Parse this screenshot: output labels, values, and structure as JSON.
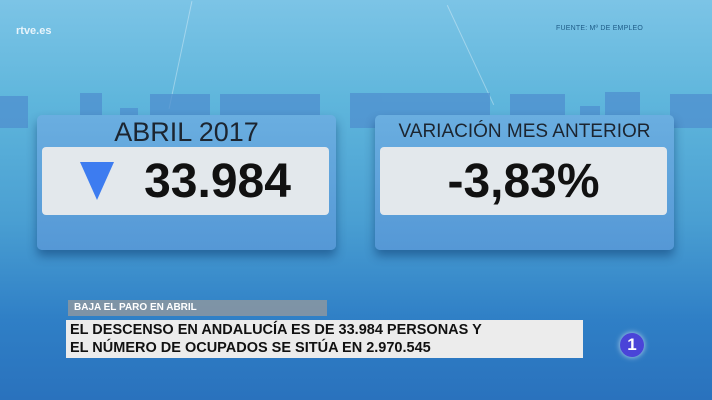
{
  "channel_logo": "rtve.es",
  "source": "FUENTE: Mº DE EMPLEO",
  "panels": [
    {
      "header": "ABRIL 2017",
      "value": "33.984",
      "indicator": "down-triangle",
      "indicator_color": "#3d7cf0"
    },
    {
      "header": "VARIACIÓN MES ANTERIOR",
      "value": "-3,83%"
    }
  ],
  "lower_third": {
    "label": "BAJA EL PARO EN ABRIL",
    "line1": "EL DESCENSO EN ANDALUCÍA ES DE 33.984 PERSONAS Y",
    "line2": "EL NÚMERO DE OCUPADOS SE SITÚA EN  2.970.545"
  },
  "channel_bug": "1"
}
